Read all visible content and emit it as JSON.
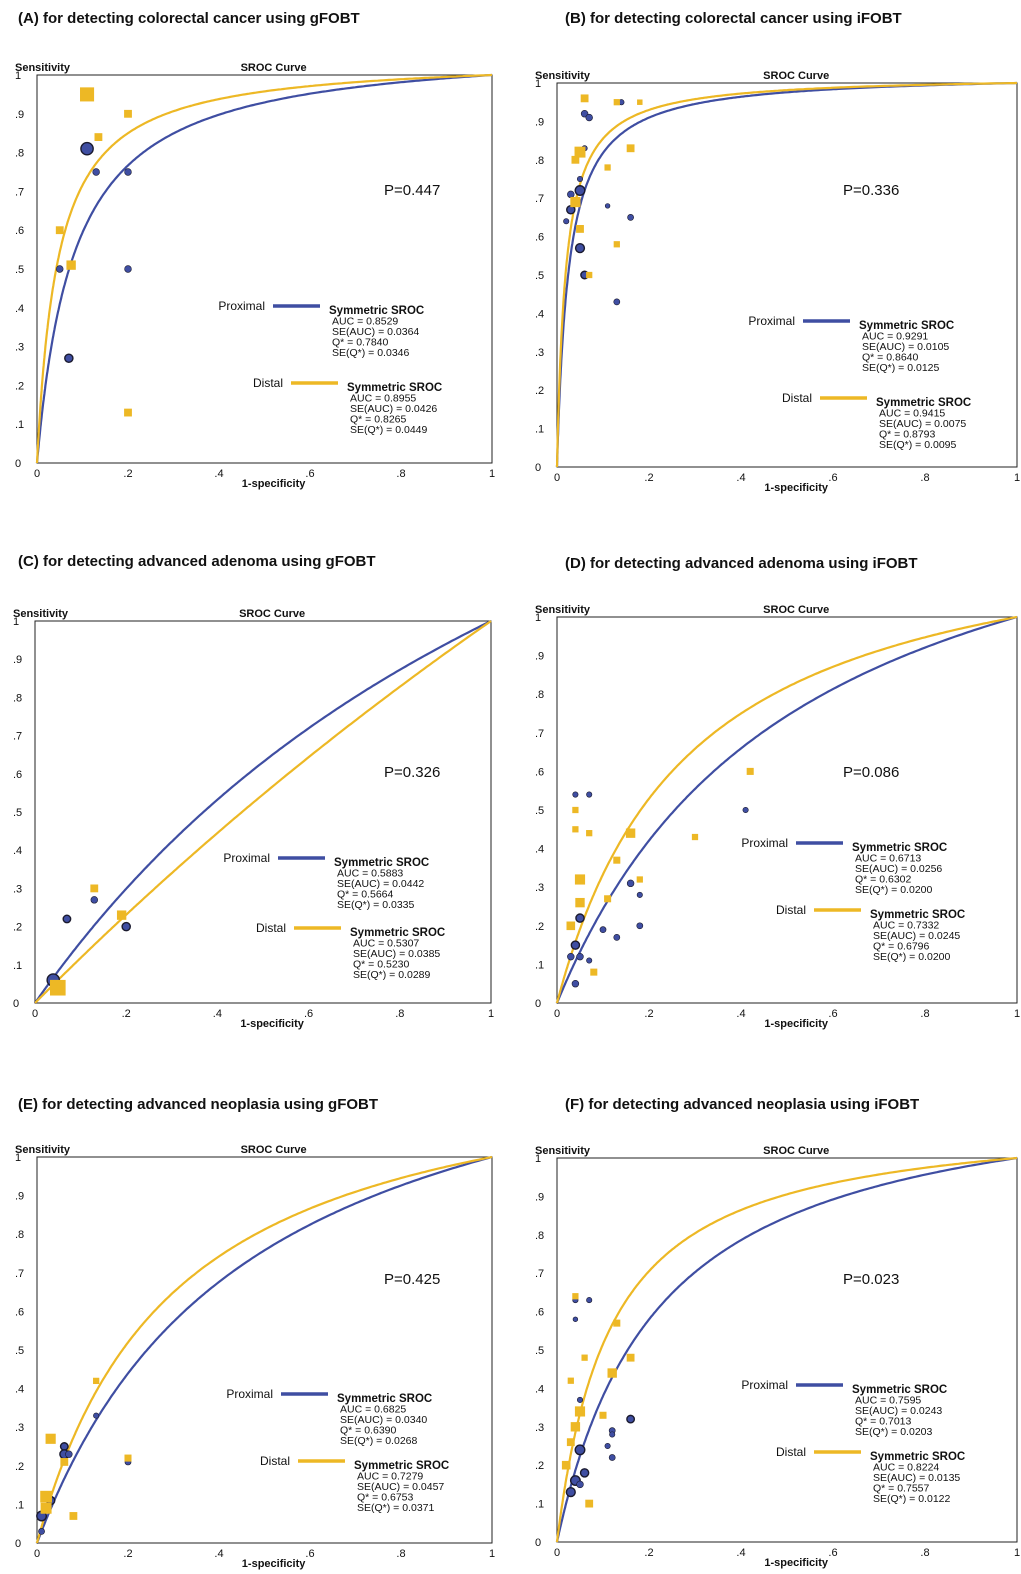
{
  "panels": [
    {
      "title": "(A) for detecting colorectal cancer  using gFOBT",
      "chart_data": {
        "type": "scatter",
        "title": "SROC Curve",
        "xlabel": "1-specificity",
        "ylabel": "Sensitivity",
        "xlim": [
          0,
          1
        ],
        "ylim": [
          0,
          1
        ],
        "xticks": [
          "0",
          ".2",
          ".4",
          ".6",
          ".8",
          "1"
        ],
        "yticks": [
          "0",
          ".1",
          ".2",
          ".3",
          ".4",
          ".5",
          ".6",
          ".7",
          ".8",
          ".9",
          "1"
        ],
        "p_value": "P=0.447",
        "series": [
          {
            "name": "Proximal",
            "color": "#3F4EA2",
            "marker": "circle",
            "auc": 0.8529,
            "stats": [
              "Symmetric  SROC",
              "AUC = 0.8529",
              "SE(AUC) = 0.0364",
              "Q* = 0.7840",
              "SE(Q*) = 0.0346"
            ],
            "points": [
              [
                0.11,
                0.81,
                1.8
              ],
              [
                0.13,
                0.75,
                1
              ],
              [
                0.2,
                0.75,
                1
              ],
              [
                0.05,
                0.5,
                1
              ],
              [
                0.2,
                0.5,
                1
              ],
              [
                0.07,
                0.27,
                1.2
              ]
            ]
          },
          {
            "name": "Distal",
            "color": "#EDB825",
            "marker": "square",
            "auc": 0.8955,
            "stats": [
              "Symmetric  SROC",
              "AUC = 0.8955",
              "SE(AUC) = 0.0426",
              "Q* = 0.8265",
              "SE(Q*) = 0.0449"
            ],
            "points": [
              [
                0.11,
                0.95,
                1.8
              ],
              [
                0.2,
                0.9,
                1
              ],
              [
                0.135,
                0.84,
                1
              ],
              [
                0.05,
                0.6,
                1
              ],
              [
                0.075,
                0.51,
                1.2
              ],
              [
                0.2,
                0.13,
                1
              ]
            ]
          }
        ]
      }
    },
    {
      "title": "(B) for detecting colorectal cancer  using iFOBT",
      "chart_data": {
        "type": "scatter",
        "title": "SROC Curve",
        "xlabel": "1-specificity",
        "ylabel": "Sensitivity",
        "xlim": [
          0,
          1
        ],
        "ylim": [
          0,
          1
        ],
        "xticks": [
          "0",
          ".2",
          ".4",
          ".6",
          ".8",
          "1"
        ],
        "yticks": [
          "0",
          ".1",
          ".2",
          ".3",
          ".4",
          ".5",
          ".6",
          ".7",
          ".8",
          ".9",
          "1"
        ],
        "p_value": "P=0.336",
        "series": [
          {
            "name": "Proximal",
            "color": "#3F4EA2",
            "marker": "circle",
            "auc": 0.9291,
            "stats": [
              "Symmetric  SROC",
              "AUC = 0.9291",
              "SE(AUC) = 0.0105",
              "Q* = 0.8640",
              "SE(Q*) = 0.0125"
            ],
            "points": [
              [
                0.06,
                0.92,
                1
              ],
              [
                0.07,
                0.91,
                1
              ],
              [
                0.14,
                0.95,
                0.8
              ],
              [
                0.06,
                0.83,
                0.8
              ],
              [
                0.05,
                0.75,
                0.8
              ],
              [
                0.05,
                0.72,
                1.4
              ],
              [
                0.03,
                0.71,
                1
              ],
              [
                0.04,
                0.69,
                1
              ],
              [
                0.03,
                0.67,
                1.2
              ],
              [
                0.11,
                0.68,
                0.7
              ],
              [
                0.05,
                0.57,
                1.3
              ],
              [
                0.06,
                0.5,
                1.1
              ],
              [
                0.16,
                0.65,
                0.9
              ],
              [
                0.13,
                0.43,
                0.9
              ],
              [
                0.02,
                0.64,
                0.8
              ]
            ]
          },
          {
            "name": "Distal",
            "color": "#EDB825",
            "marker": "square",
            "auc": 0.9415,
            "stats": [
              "Symmetric  SROC",
              "AUC = 0.9415",
              "SE(AUC) = 0.0075",
              "Q* = 0.8793",
              "SE(Q*) = 0.0095"
            ],
            "points": [
              [
                0.06,
                0.96,
                1
              ],
              [
                0.13,
                0.95,
                0.8
              ],
              [
                0.18,
                0.95,
                0.7
              ],
              [
                0.05,
                0.82,
                1.4
              ],
              [
                0.04,
                0.8,
                1
              ],
              [
                0.16,
                0.83,
                1
              ],
              [
                0.11,
                0.78,
                0.8
              ],
              [
                0.04,
                0.69,
                1.3
              ],
              [
                0.05,
                0.62,
                1
              ],
              [
                0.13,
                0.58,
                0.8
              ],
              [
                0.07,
                0.5,
                0.8
              ]
            ]
          }
        ]
      }
    },
    {
      "title": "(C) for detecting advanced  adenoma  using gFOBT",
      "chart_data": {
        "type": "scatter",
        "title": "SROC Curve",
        "xlabel": "1-specificity",
        "ylabel": "Sensitivity",
        "xlim": [
          0,
          1
        ],
        "ylim": [
          0,
          1
        ],
        "xticks": [
          "0",
          ".2",
          ".4",
          ".6",
          ".8",
          "1"
        ],
        "yticks": [
          "0",
          ".1",
          ".2",
          ".3",
          ".4",
          ".5",
          ".6",
          ".7",
          ".8",
          ".9",
          "1"
        ],
        "p_value": "P=0.326",
        "series": [
          {
            "name": "Proximal",
            "color": "#3F4EA2",
            "marker": "circle",
            "auc": 0.5883,
            "stats": [
              "Symmetric  SROC",
              "AUC = 0.5883",
              "SE(AUC) = 0.0442",
              "Q* = 0.5664",
              "SE(Q*) = 0.0335"
            ],
            "points": [
              [
                0.04,
                0.06,
                1.8
              ],
              [
                0.07,
                0.22,
                1.1
              ],
              [
                0.13,
                0.27,
                1
              ],
              [
                0.2,
                0.2,
                1.2
              ]
            ]
          },
          {
            "name": "Distal",
            "color": "#EDB825",
            "marker": "square",
            "auc": 0.5307,
            "stats": [
              "Symmetric  SROC",
              "AUC = 0.5307",
              "SE(AUC) = 0.0385",
              "Q* = 0.5230",
              "SE(Q*) = 0.0289"
            ],
            "points": [
              [
                0.05,
                0.04,
                2
              ],
              [
                0.13,
                0.3,
                1
              ],
              [
                0.19,
                0.23,
                1.2
              ]
            ]
          }
        ]
      }
    },
    {
      "title": "(D) for detecting advanced  adenoma  using iFOBT",
      "chart_data": {
        "type": "scatter",
        "title": "SROC Curve",
        "xlabel": "1-specificity",
        "ylabel": "Sensitivity",
        "xlim": [
          0,
          1
        ],
        "ylim": [
          0,
          1
        ],
        "xticks": [
          "0",
          ".2",
          ".4",
          ".6",
          ".8",
          "1"
        ],
        "yticks": [
          "0",
          ".1",
          ".2",
          ".3",
          ".4",
          ".5",
          ".6",
          ".7",
          ".8",
          ".9",
          "1"
        ],
        "p_value": "P=0.086",
        "series": [
          {
            "name": "Proximal",
            "color": "#3F4EA2",
            "marker": "circle",
            "auc": 0.6713,
            "stats": [
              "Symmetric  SROC",
              "AUC = 0.6713",
              "SE(AUC) = 0.0256",
              "Q* = 0.6302",
              "SE(Q*) = 0.0200"
            ],
            "points": [
              [
                0.04,
                0.54,
                0.8
              ],
              [
                0.07,
                0.54,
                0.8
              ],
              [
                0.04,
                0.5,
                0.7
              ],
              [
                0.41,
                0.5,
                0.8
              ],
              [
                0.05,
                0.22,
                1.2
              ],
              [
                0.04,
                0.15,
                1.2
              ],
              [
                0.05,
                0.12,
                1
              ],
              [
                0.03,
                0.12,
                1
              ],
              [
                0.07,
                0.11,
                0.8
              ],
              [
                0.04,
                0.05,
                1
              ],
              [
                0.1,
                0.19,
                0.9
              ],
              [
                0.13,
                0.17,
                0.9
              ],
              [
                0.16,
                0.31,
                1
              ],
              [
                0.18,
                0.28,
                0.8
              ],
              [
                0.18,
                0.2,
                0.9
              ]
            ]
          },
          {
            "name": "Distal",
            "color": "#EDB825",
            "marker": "square",
            "auc": 0.7332,
            "stats": [
              "Symmetric  SROC",
              "AUC = 0.7332",
              "SE(AUC) = 0.0245",
              "Q* = 0.6796",
              "SE(Q*) = 0.0200"
            ],
            "points": [
              [
                0.42,
                0.6,
                0.9
              ],
              [
                0.04,
                0.5,
                0.8
              ],
              [
                0.04,
                0.45,
                0.8
              ],
              [
                0.07,
                0.44,
                0.8
              ],
              [
                0.16,
                0.44,
                1.2
              ],
              [
                0.05,
                0.32,
                1.3
              ],
              [
                0.05,
                0.26,
                1.2
              ],
              [
                0.03,
                0.2,
                1.1
              ],
              [
                0.11,
                0.27,
                0.9
              ],
              [
                0.13,
                0.37,
                0.9
              ],
              [
                0.18,
                0.32,
                0.8
              ],
              [
                0.3,
                0.43,
                0.8
              ],
              [
                0.08,
                0.08,
                0.9
              ]
            ]
          }
        ]
      }
    },
    {
      "title": "(E) for detecting advanced  neoplasia  using gFOBT",
      "chart_data": {
        "type": "scatter",
        "title": "SROC Curve",
        "xlabel": "1-specificity",
        "ylabel": "Sensitivity",
        "xlim": [
          0,
          1
        ],
        "ylim": [
          0,
          1
        ],
        "xticks": [
          "0",
          ".2",
          ".4",
          ".6",
          ".8",
          "1"
        ],
        "yticks": [
          "0",
          ".1",
          ".2",
          ".3",
          ".4",
          ".5",
          ".6",
          ".7",
          ".8",
          ".9",
          "1"
        ],
        "p_value": "P=0.425",
        "series": [
          {
            "name": "Proximal",
            "color": "#3F4EA2",
            "marker": "circle",
            "auc": 0.6825,
            "stats": [
              "Symmetric  SROC",
              "AUC = 0.6825",
              "SE(AUC) = 0.0340",
              "Q* = 0.6390",
              "SE(Q*) = 0.0268"
            ],
            "points": [
              [
                0.06,
                0.25,
                1.1
              ],
              [
                0.06,
                0.23,
                1.3
              ],
              [
                0.07,
                0.23,
                1
              ],
              [
                0.13,
                0.33,
                0.8
              ],
              [
                0.2,
                0.21,
                0.9
              ],
              [
                0.03,
                0.11,
                1.2
              ],
              [
                0.01,
                0.07,
                1.4
              ],
              [
                0.01,
                0.03,
                0.9
              ]
            ]
          },
          {
            "name": "Distal",
            "color": "#EDB825",
            "marker": "square",
            "auc": 0.7279,
            "stats": [
              "Symmetric  SROC",
              "AUC = 0.7279",
              "SE(AUC) = 0.0457",
              "Q* = 0.6753",
              "SE(Q*) = 0.0371"
            ],
            "points": [
              [
                0.13,
                0.42,
                0.8
              ],
              [
                0.03,
                0.27,
                1.3
              ],
              [
                0.06,
                0.21,
                1
              ],
              [
                0.2,
                0.22,
                0.9
              ],
              [
                0.02,
                0.12,
                1.5
              ],
              [
                0.02,
                0.09,
                1.4
              ],
              [
                0.08,
                0.07,
                1
              ]
            ]
          }
        ]
      }
    },
    {
      "title": "(F) for detecting advanced  neoplasia  using iFOBT",
      "chart_data": {
        "type": "scatter",
        "title": "SROC Curve",
        "xlabel": "1-specificity",
        "ylabel": "Sensitivity",
        "xlim": [
          0,
          1
        ],
        "ylim": [
          0,
          1
        ],
        "xticks": [
          "0",
          ".2",
          ".4",
          ".6",
          ".8",
          "1"
        ],
        "yticks": [
          "0",
          ".1",
          ".2",
          ".3",
          ".4",
          ".5",
          ".6",
          ".7",
          ".8",
          ".9",
          "1"
        ],
        "p_value": "P=0.023",
        "series": [
          {
            "name": "Proximal",
            "color": "#3F4EA2",
            "marker": "circle",
            "auc": 0.7595,
            "stats": [
              "Symmetric  SROC",
              "AUC = 0.7595",
              "SE(AUC) = 0.0243",
              "Q* = 0.7013",
              "SE(Q*) = 0.0203"
            ],
            "points": [
              [
                0.04,
                0.63,
                0.8
              ],
              [
                0.07,
                0.63,
                0.8
              ],
              [
                0.04,
                0.58,
                0.7
              ],
              [
                0.05,
                0.37,
                0.8
              ],
              [
                0.05,
                0.24,
                1.4
              ],
              [
                0.06,
                0.18,
                1.2
              ],
              [
                0.04,
                0.16,
                1.4
              ],
              [
                0.03,
                0.13,
                1.3
              ],
              [
                0.11,
                0.25,
                0.8
              ],
              [
                0.12,
                0.29,
                0.9
              ],
              [
                0.16,
                0.32,
                1.1
              ],
              [
                0.12,
                0.22,
                0.9
              ],
              [
                0.12,
                0.28,
                0.8
              ],
              [
                0.05,
                0.15,
                1
              ]
            ]
          },
          {
            "name": "Distal",
            "color": "#EDB825",
            "marker": "square",
            "auc": 0.8224,
            "stats": [
              "Symmetric  SROC",
              "AUC = 0.8224",
              "SE(AUC) = 0.0135",
              "Q* = 0.7557",
              "SE(Q*) = 0.0122"
            ],
            "points": [
              [
                0.04,
                0.64,
                0.8
              ],
              [
                0.13,
                0.57,
                0.9
              ],
              [
                0.06,
                0.48,
                0.8
              ],
              [
                0.16,
                0.48,
                1
              ],
              [
                0.12,
                0.44,
                1.2
              ],
              [
                0.03,
                0.42,
                0.8
              ],
              [
                0.05,
                0.34,
                1.3
              ],
              [
                0.04,
                0.3,
                1.2
              ],
              [
                0.1,
                0.33,
                0.9
              ],
              [
                0.02,
                0.2,
                1.1
              ],
              [
                0.03,
                0.26,
                1
              ],
              [
                0.07,
                0.1,
                1
              ]
            ]
          }
        ]
      }
    }
  ]
}
